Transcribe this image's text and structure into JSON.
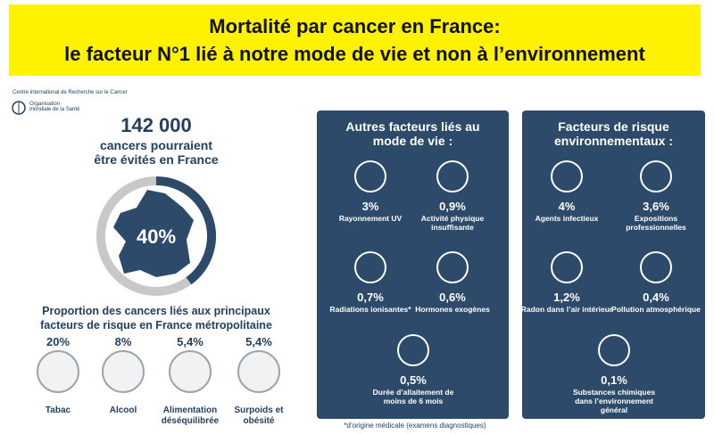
{
  "banner": {
    "line1": "Mortalité par cancer en France:",
    "line2": "le facteur N°1 lié à notre mode de vie et non à l’environnement"
  },
  "logo": {
    "iarc": "Centre international de Recherche sur le Cancer",
    "who": "Organisation mondiale de la Santé"
  },
  "headline": {
    "number": "142 000",
    "text": "cancers pourraient être évités en France",
    "share": {
      "value": 40,
      "label": "40%"
    }
  },
  "main_factors": {
    "title": "Proportion des cancers liés aux principaux facteurs de risque en France métropolitaine",
    "items": [
      {
        "value": "20%",
        "label": "Tabac"
      },
      {
        "value": "8%",
        "label": "Alcool"
      },
      {
        "value": "5,4%",
        "label": "Alimentation déséquilibrée"
      },
      {
        "value": "5,4%",
        "label": "Surpoids et obésité"
      }
    ]
  },
  "lifestyle": {
    "title": "Autres facteurs liés au mode de vie :",
    "items": [
      {
        "value": "3%",
        "label": "Rayonnement UV"
      },
      {
        "value": "0,9%",
        "label": "Activité physique insuffisante"
      },
      {
        "value": "0,7%",
        "label": "Radiations ionisantes*"
      },
      {
        "value": "0,6%",
        "label": "Hormones exogènes"
      },
      {
        "value": "0,5%",
        "label": "Durée d’allaitement de moins de 6 mois"
      }
    ],
    "footnote": "*d’origine médicale (examens diagnostiques)"
  },
  "environment": {
    "title": "Facteurs de risque environnementaux :",
    "items": [
      {
        "value": "4%",
        "label": "Agents infectieux"
      },
      {
        "value": "3,6%",
        "label": "Expositions professionnelles"
      },
      {
        "value": "1,2%",
        "label": "Radon dans l’air intérieur"
      },
      {
        "value": "0,4%",
        "label": "Pollution atmosphérique"
      },
      {
        "value": "0,1%",
        "label": "Substances chimiques dans l’environnement général"
      }
    ]
  }
}
